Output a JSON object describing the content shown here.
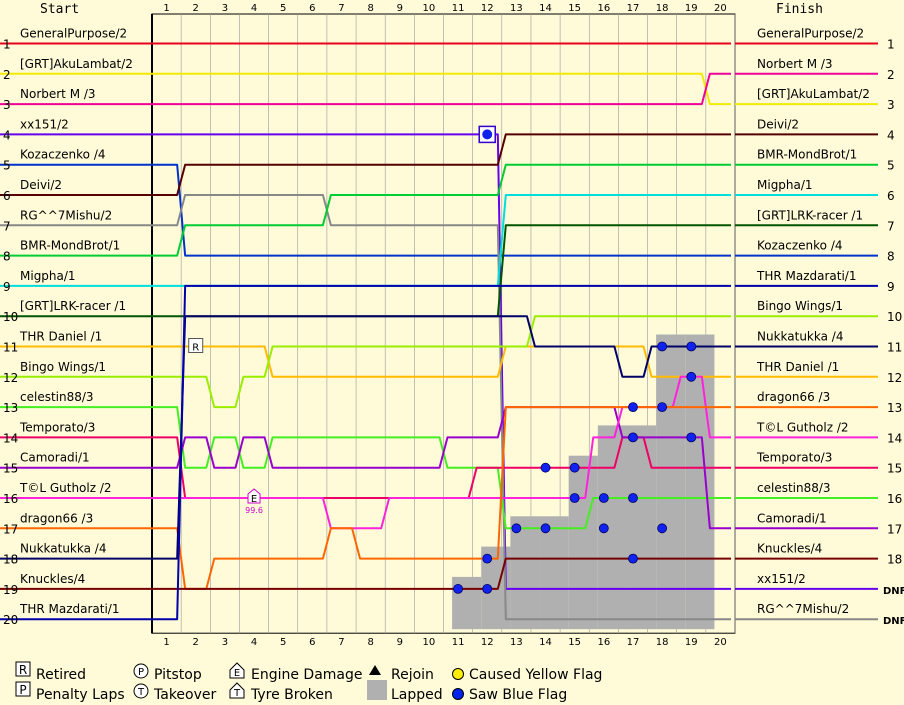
{
  "chart_data": {
    "type": "line",
    "title": "",
    "start_label": "Start",
    "finish_label": "Finish",
    "laps": [
      "1",
      "2",
      "3",
      "4",
      "5",
      "6",
      "7",
      "8",
      "9",
      "10",
      "11",
      "12",
      "13",
      "14",
      "15",
      "16",
      "17",
      "18",
      "19",
      "20"
    ],
    "positions": [
      "1",
      "2",
      "3",
      "4",
      "5",
      "6",
      "7",
      "8",
      "9",
      "10",
      "11",
      "12",
      "13",
      "14",
      "15",
      "16",
      "17",
      "18",
      "19",
      "20"
    ],
    "ylim": [
      1,
      20
    ],
    "grid": true,
    "start_grid": [
      {
        "name": "GeneralPurpose/2",
        "color": "#e8001c"
      },
      {
        "name": "[GRT]AkuLambat/2",
        "color": "#f2ea00"
      },
      {
        "name": "Norbert M /3",
        "color": "#ee0099"
      },
      {
        "name": "xx151/2",
        "color": "#6600ee"
      },
      {
        "name": "Kozaczenko /4",
        "color": "#0033cc"
      },
      {
        "name": "Deivi/2",
        "color": "#550000"
      },
      {
        "name": "RG^^7Mishu/2",
        "color": "#888888"
      },
      {
        "name": "BMR-MondBrot/1",
        "color": "#00cc33"
      },
      {
        "name": "Migpha/1",
        "color": "#00dddd"
      },
      {
        "name": "[GRT]LRK-racer /1",
        "color": "#005500"
      },
      {
        "name": "THR Daniel /1",
        "color": "#ffbb00"
      },
      {
        "name": "Bingo Wings/1",
        "color": "#99ee00"
      },
      {
        "name": "celestin88/3",
        "color": "#44ee22"
      },
      {
        "name": "Temporato/3",
        "color": "#ee0066"
      },
      {
        "name": "Camoradi/1",
        "color": "#9900cc"
      },
      {
        "name": "T©L Gutholz /2",
        "color": "#ff22dd"
      },
      {
        "name": "dragon66 /3",
        "color": "#ff6600"
      },
      {
        "name": "Nukkatukka /4",
        "color": "#000066"
      },
      {
        "name": "Knuckles/4",
        "color": "#770000"
      },
      {
        "name": "THR Mazdarati/1",
        "color": "#0000aa"
      }
    ],
    "finish_order": [
      "GeneralPurpose/2",
      "Norbert M /3",
      "[GRT]AkuLambat/2",
      "Deivi/2",
      "BMR-MondBrot/1",
      "Migpha/1",
      "[GRT]LRK-racer /1",
      "Kozaczenko /4",
      "THR Mazdarati/1",
      "Bingo Wings/1",
      "Nukkatukka /4",
      "THR Daniel /1",
      "dragon66 /3",
      "T©L Gutholz /2",
      "Temporato/3",
      "celestin88/3",
      "Camoradi/1",
      "Knuckles/4",
      "xx151/2",
      "RG^^7Mishu/2"
    ],
    "finish_status": [
      "1",
      "2",
      "3",
      "4",
      "5",
      "6",
      "7",
      "8",
      "9",
      "10",
      "11",
      "12",
      "13",
      "14",
      "15",
      "16",
      "17",
      "18",
      "DNF",
      "DNF"
    ],
    "series": [
      {
        "name": "GeneralPurpose/2",
        "values": [
          1,
          1,
          1,
          1,
          1,
          1,
          1,
          1,
          1,
          1,
          1,
          1,
          1,
          1,
          1,
          1,
          1,
          1,
          1,
          1
        ]
      },
      {
        "name": "[GRT]AkuLambat/2",
        "values": [
          2,
          2,
          2,
          2,
          2,
          2,
          2,
          2,
          2,
          2,
          2,
          2,
          2,
          2,
          2,
          2,
          2,
          2,
          2,
          3
        ]
      },
      {
        "name": "Norbert M /3",
        "values": [
          3,
          3,
          3,
          3,
          3,
          3,
          3,
          3,
          3,
          3,
          3,
          3,
          3,
          3,
          3,
          3,
          3,
          3,
          3,
          2
        ]
      },
      {
        "name": "xx151/2",
        "values": [
          4,
          4,
          4,
          4,
          4,
          4,
          4,
          4,
          4,
          4,
          4,
          4,
          19,
          19,
          19,
          19,
          19,
          19,
          19,
          19
        ]
      },
      {
        "name": "Kozaczenko /4",
        "values": [
          5,
          8,
          8,
          8,
          8,
          8,
          8,
          8,
          8,
          8,
          8,
          8,
          8,
          8,
          8,
          8,
          8,
          8,
          8,
          8
        ]
      },
      {
        "name": "Deivi/2",
        "values": [
          6,
          5,
          5,
          5,
          5,
          5,
          5,
          5,
          5,
          5,
          5,
          5,
          4,
          4,
          4,
          4,
          4,
          4,
          4,
          4
        ]
      },
      {
        "name": "RG^^7Mishu/2",
        "values": [
          7,
          6,
          6,
          6,
          6,
          6,
          7,
          7,
          7,
          7,
          7,
          7,
          20,
          20,
          20,
          20,
          20,
          20,
          20,
          20
        ]
      },
      {
        "name": "BMR-MondBrot/1",
        "values": [
          8,
          7,
          7,
          7,
          7,
          7,
          6,
          6,
          6,
          6,
          6,
          6,
          5,
          5,
          5,
          5,
          5,
          5,
          5,
          5
        ]
      },
      {
        "name": "Migpha/1",
        "values": [
          9,
          9,
          9,
          9,
          9,
          9,
          9,
          9,
          9,
          9,
          9,
          9,
          6,
          6,
          6,
          6,
          6,
          6,
          6,
          6
        ]
      },
      {
        "name": "[GRT]LRK-racer /1",
        "values": [
          10,
          10,
          10,
          10,
          10,
          10,
          10,
          10,
          10,
          10,
          10,
          10,
          7,
          7,
          7,
          7,
          7,
          7,
          7,
          7
        ]
      },
      {
        "name": "THR Daniel /1",
        "values": [
          11,
          11,
          11,
          11,
          12,
          12,
          12,
          12,
          12,
          12,
          12,
          12,
          11,
          11,
          11,
          11,
          11,
          12,
          12,
          12
        ]
      },
      {
        "name": "Bingo Wings/1",
        "values": [
          12,
          12,
          13,
          12,
          11,
          11,
          11,
          11,
          11,
          11,
          11,
          11,
          11,
          10,
          10,
          10,
          10,
          10,
          10,
          10
        ]
      },
      {
        "name": "celestin88/3",
        "values": [
          13,
          15,
          14,
          15,
          14,
          14,
          14,
          14,
          14,
          14,
          15,
          15,
          17,
          17,
          17,
          16,
          16,
          16,
          16,
          16
        ]
      },
      {
        "name": "Temporato/3",
        "values": [
          14,
          16,
          16,
          16,
          16,
          16,
          16,
          16,
          16,
          16,
          16,
          15,
          15,
          15,
          15,
          15,
          14,
          15,
          15,
          15
        ]
      },
      {
        "name": "Camoradi/1",
        "values": [
          15,
          14,
          15,
          14,
          15,
          15,
          15,
          15,
          15,
          15,
          14,
          14,
          13,
          13,
          13,
          13,
          14,
          14,
          14,
          17
        ]
      },
      {
        "name": "T©L Gutholz /2",
        "values": [
          16,
          16,
          16,
          16,
          16,
          16,
          17,
          17,
          16,
          16,
          16,
          16,
          16,
          16,
          16,
          14,
          13,
          13,
          12,
          14
        ]
      },
      {
        "name": "dragon66 /3",
        "values": [
          17,
          19,
          18,
          18,
          18,
          18,
          17,
          18,
          18,
          18,
          18,
          18,
          13,
          13,
          13,
          13,
          13,
          13,
          13,
          13
        ]
      },
      {
        "name": "Nukkatukka /4",
        "values": [
          18,
          10,
          10,
          10,
          10,
          10,
          10,
          10,
          10,
          10,
          10,
          10,
          10,
          11,
          11,
          11,
          12,
          11,
          11,
          11
        ]
      },
      {
        "name": "Knuckles/4",
        "values": [
          19,
          19,
          19,
          19,
          19,
          19,
          19,
          19,
          19,
          19,
          19,
          19,
          18,
          18,
          18,
          18,
          18,
          18,
          18,
          18
        ]
      },
      {
        "name": "THR Mazdarati/1",
        "values": [
          20,
          9,
          9,
          9,
          9,
          9,
          9,
          9,
          9,
          9,
          9,
          9,
          9,
          9,
          9,
          9,
          9,
          9,
          9,
          9
        ]
      }
    ],
    "annotations": [
      {
        "type": "retired",
        "lap": 2,
        "position": 11,
        "symbol": "R"
      },
      {
        "type": "engine-damage",
        "lap": 4,
        "position": 16,
        "symbol": "E",
        "value": "99.6"
      },
      {
        "type": "pitstop",
        "lap": 12,
        "position": 4,
        "symbol": "P"
      }
    ],
    "lapped": [
      {
        "lap": 11,
        "from": 19
      },
      {
        "lap": 12,
        "from": 18
      },
      {
        "lap": 13,
        "from": 17
      },
      {
        "lap": 14,
        "from": 17
      },
      {
        "lap": 15,
        "from": 15
      },
      {
        "lap": 16,
        "from": 14
      },
      {
        "lap": 17,
        "from": 14
      },
      {
        "lap": 18,
        "from": 11
      },
      {
        "lap": 19,
        "from": 11
      }
    ],
    "blue_flags": [
      {
        "lap": 11,
        "position": 19
      },
      {
        "lap": 12,
        "position": 19
      },
      {
        "lap": 12,
        "position": 18
      },
      {
        "lap": 13,
        "position": 17
      },
      {
        "lap": 14,
        "position": 17
      },
      {
        "lap": 14,
        "position": 15
      },
      {
        "lap": 15,
        "position": 15
      },
      {
        "lap": 15,
        "position": 16
      },
      {
        "lap": 16,
        "position": 16
      },
      {
        "lap": 16,
        "position": 17
      },
      {
        "lap": 17,
        "position": 14
      },
      {
        "lap": 17,
        "position": 13
      },
      {
        "lap": 17,
        "position": 16
      },
      {
        "lap": 17,
        "position": 18
      },
      {
        "lap": 18,
        "position": 11
      },
      {
        "lap": 18,
        "position": 13
      },
      {
        "lap": 18,
        "position": 17
      },
      {
        "lap": 19,
        "position": 11
      },
      {
        "lap": 19,
        "position": 12
      },
      {
        "lap": 19,
        "position": 14
      }
    ],
    "legend": [
      {
        "icon": "retired-icon",
        "symbol": "R",
        "label": "Retired"
      },
      {
        "icon": "penalty-icon",
        "symbol": "P",
        "label": "Penalty Laps"
      },
      {
        "icon": "pitstop-icon",
        "symbol": "P",
        "label": "Pitstop"
      },
      {
        "icon": "takeover-icon",
        "symbol": "T",
        "label": "Takeover"
      },
      {
        "icon": "engine-damage-icon",
        "symbol": "E",
        "label": "Engine Damage"
      },
      {
        "icon": "tyre-broken-icon",
        "symbol": "T",
        "label": "Tyre Broken"
      },
      {
        "icon": "rejoin-icon",
        "symbol": "▲",
        "label": "Rejoin"
      },
      {
        "icon": "lapped-icon",
        "symbol": "",
        "label": "Lapped"
      },
      {
        "icon": "yellow-flag-icon",
        "symbol": "●",
        "label": "Caused Yellow Flag",
        "color": "#ffee00"
      },
      {
        "icon": "blue-flag-icon",
        "symbol": "●",
        "label": "Saw Blue Flag",
        "color": "#0022ee"
      }
    ]
  }
}
